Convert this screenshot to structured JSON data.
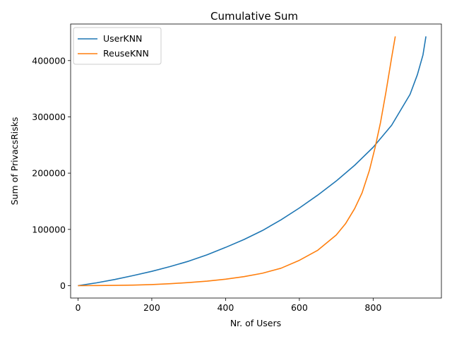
{
  "chart_data": {
    "type": "line",
    "title": "Cumulative Sum",
    "xlabel": "Nr. of Users",
    "ylabel": "Sum of PrivacsRisks",
    "xlim": [
      -20,
      985
    ],
    "ylim": [
      -22000,
      465000
    ],
    "xticks": [
      0,
      200,
      400,
      600,
      800
    ],
    "yticks": [
      0,
      100000,
      200000,
      300000,
      400000
    ],
    "grid": false,
    "legend_position": "top-left",
    "series": [
      {
        "name": "UserKNN",
        "color": "#1f77b4",
        "x": [
          0,
          50,
          100,
          150,
          200,
          250,
          300,
          350,
          400,
          450,
          500,
          550,
          600,
          650,
          700,
          750,
          800,
          850,
          900,
          920,
          935,
          943
        ],
        "y": [
          0,
          5000,
          11000,
          18000,
          25500,
          34000,
          43500,
          55000,
          68000,
          82000,
          98000,
          117000,
          138000,
          161000,
          186000,
          214000,
          246000,
          285000,
          340000,
          375000,
          410000,
          443000
        ]
      },
      {
        "name": "ReuseKNN",
        "color": "#ff7f0e",
        "x": [
          0,
          50,
          100,
          150,
          200,
          250,
          300,
          350,
          400,
          450,
          500,
          550,
          600,
          650,
          700,
          725,
          750,
          770,
          790,
          805,
          820,
          835,
          850,
          860
        ],
        "y": [
          0,
          200,
          500,
          1000,
          2000,
          3500,
          5500,
          8000,
          11500,
          16000,
          22000,
          31000,
          45000,
          63000,
          90000,
          110000,
          137000,
          165000,
          205000,
          245000,
          290000,
          345000,
          405000,
          443000
        ]
      }
    ]
  }
}
